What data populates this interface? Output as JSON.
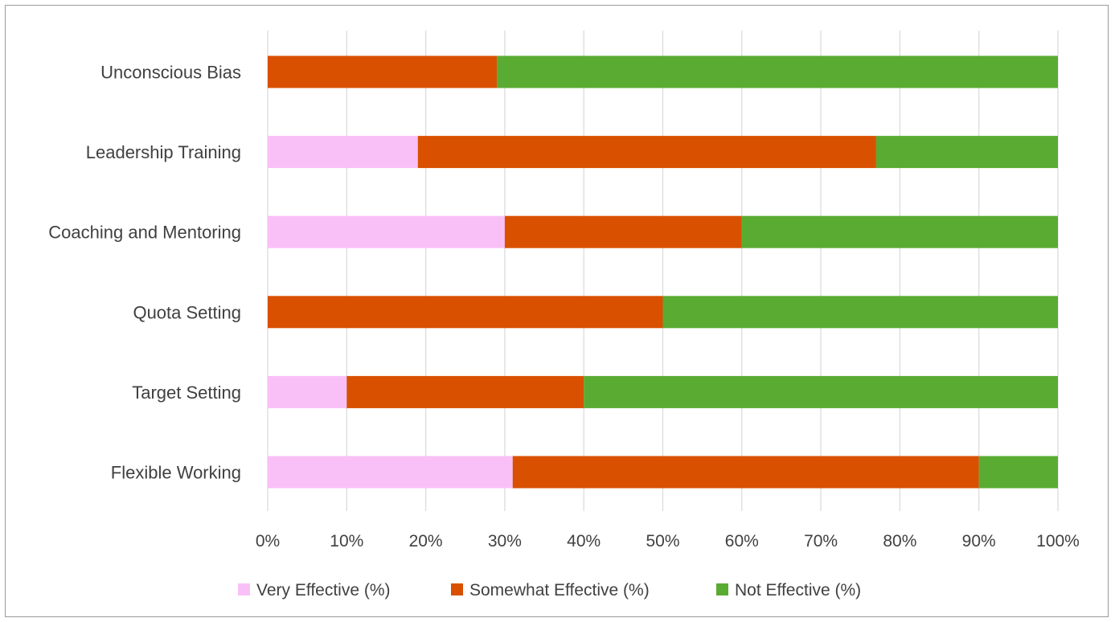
{
  "chart_data": {
    "type": "bar",
    "orientation": "horizontal",
    "stacked": "percent",
    "categories": [
      "Unconscious Bias",
      "Leadership Training",
      "Coaching and Mentoring",
      "Quota Setting",
      "Target Setting",
      "Flexible Working"
    ],
    "series": [
      {
        "name": "Very Effective (%)",
        "color": "#f9c0f7",
        "values": [
          0,
          19,
          30,
          0,
          10,
          31
        ]
      },
      {
        "name": "Somewhat Effective (%)",
        "color": "#d95000",
        "values": [
          29,
          58,
          30,
          50,
          30,
          59
        ]
      },
      {
        "name": "Not Effective (%)",
        "color": "#5aab32",
        "values": [
          71,
          23,
          40,
          50,
          60,
          10
        ]
      }
    ],
    "xlim": [
      0,
      100
    ],
    "xticks": [
      "0%",
      "10%",
      "20%",
      "30%",
      "40%",
      "50%",
      "60%",
      "70%",
      "80%",
      "90%",
      "100%"
    ],
    "grid": true,
    "legend_position": "bottom"
  }
}
